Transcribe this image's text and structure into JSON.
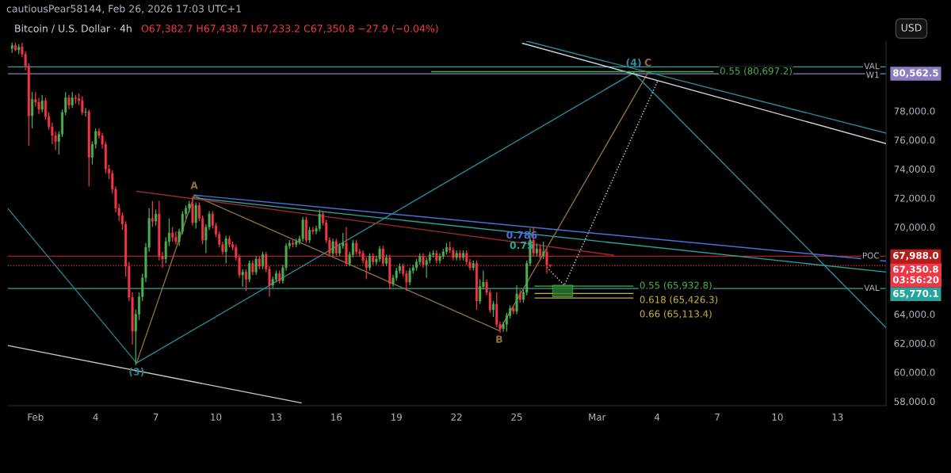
{
  "chart_data": {
    "type": "candlestick",
    "title": "Bitcoin / U.S. Dollar · 4h",
    "subtitle": "O67,382.7 H67,438.7 L67,233.2 C67,350.8 −27.9 (−0.04%)",
    "ylabel": "USD",
    "colors": [
      "#4caf50",
      "#f23645",
      "#4caf50",
      "#f23645",
      "#f23645",
      "#f23645",
      "#4caf50",
      "#f23645",
      "#f23645",
      "#4caf50",
      "#f23645",
      "#f23645",
      "#f23645",
      "#f23645",
      "#4caf50",
      "#4caf50",
      "#4caf50",
      "#f23645",
      "#4caf50",
      "#f23645",
      "#f23645",
      "#f23645",
      "#4caf50",
      "#f23645",
      "#4caf50",
      "#4caf50",
      "#f23645",
      "#f23645",
      "#f23645",
      "#f23645",
      "#f23645",
      "#f23645",
      "#f23645",
      "#f23645",
      "#f23645",
      "#f23645",
      "#f23645",
      "#4caf50",
      "#4caf50",
      "#4caf50",
      "#4caf50",
      "#4caf50",
      "#f23645",
      "#4caf50",
      "#f23645",
      "#f23645",
      "#4caf50",
      "#4caf50",
      "#f23645",
      "#f23645",
      "#4caf50",
      "#4caf50",
      "#4caf50",
      "#4caf50",
      "#f23645",
      "#4caf50",
      "#f23645",
      "#f23645",
      "#4caf50",
      "#4caf50",
      "#f23645",
      "#f23645",
      "#f23645",
      "#f23645",
      "#4caf50",
      "#f23645",
      "#f23645",
      "#f23645",
      "#f23645",
      "#4caf50",
      "#f23645",
      "#4caf50",
      "#f23645",
      "#4caf50",
      "#f23645",
      "#4caf50",
      "#f23645",
      "#f23645",
      "#4caf50",
      "#4caf50",
      "#f23645",
      "#4caf50",
      "#4caf50",
      "#4caf50",
      "#f23645",
      "#4caf50",
      "#4caf50",
      "#4caf50",
      "#f23645",
      "#4caf50",
      "#f23645",
      "#4caf50",
      "#4caf50",
      "#f23645",
      "#f23645",
      "#f23645",
      "#4caf50",
      "#f23645",
      "#4caf50",
      "#4caf50",
      "#f23645",
      "#4caf50",
      "#4caf50",
      "#f23645",
      "#f23645",
      "#f23645",
      "#f23645",
      "#4caf50",
      "#f23645",
      "#4caf50",
      "#4caf50",
      "#f23645",
      "#4caf50",
      "#f23645",
      "#4caf50",
      "#4caf50",
      "#4caf50",
      "#f23645",
      "#f23645",
      "#4caf50",
      "#4caf50",
      "#4caf50",
      "#4caf50",
      "#f23645",
      "#4caf50",
      "#4caf50",
      "#4caf50",
      "#f23645",
      "#4caf50",
      "#4caf50",
      "#4caf50",
      "#f23645",
      "#f23645",
      "#4caf50",
      "#f23645",
      "#4caf50",
      "#f23645",
      "#f23645",
      "#4caf50",
      "#f23645",
      "#4caf50",
      "#4caf50",
      "#f23645",
      "#f23645",
      "#4caf50",
      "#f23645",
      "#f23645",
      "#4caf50",
      "#4caf50",
      "#4caf50",
      "#f23645",
      "#4caf50",
      "#f23645",
      "#4caf50",
      "#4caf50",
      "#4caf50",
      "#f23645",
      "#4caf50",
      "#f23645",
      "#4caf50",
      "#f23645",
      "#f23645"
    ],
    "x": [
      "2026-01-30T20:00",
      "2026-01-31T00:00",
      "2026-01-31T04:00",
      "2026-01-31T08:00",
      "2026-01-31T12:00",
      "2026-01-31T16:00",
      "2026-01-31T20:00",
      "2026-02-01T00:00",
      "2026-02-01T04:00",
      "2026-02-01T08:00",
      "2026-02-01T12:00",
      "2026-02-01T16:00",
      "2026-02-01T20:00",
      "2026-02-02T00:00",
      "2026-02-02T04:00",
      "2026-02-02T08:00",
      "2026-02-02T12:00",
      "2026-02-02T16:00",
      "2026-02-02T20:00",
      "2026-02-03T00:00",
      "2026-02-03T04:00",
      "2026-02-03T08:00",
      "2026-02-03T12:00",
      "2026-02-03T16:00",
      "2026-02-03T20:00",
      "2026-02-04T00:00",
      "2026-02-04T04:00",
      "2026-02-04T08:00",
      "2026-02-04T12:00",
      "2026-02-04T16:00",
      "2026-02-04T20:00",
      "2026-02-05T00:00",
      "2026-02-05T04:00",
      "2026-02-05T08:00",
      "2026-02-05T12:00",
      "2026-02-05T16:00",
      "2026-02-05T20:00",
      "2026-02-06T00:00",
      "2026-02-06T04:00",
      "2026-02-06T08:00",
      "2026-02-06T12:00",
      "2026-02-06T16:00",
      "2026-02-06T20:00",
      "2026-02-07T00:00",
      "2026-02-07T04:00",
      "2026-02-07T08:00",
      "2026-02-07T12:00",
      "2026-02-07T16:00",
      "2026-02-07T20:00",
      "2026-02-08T00:00",
      "2026-02-08T04:00",
      "2026-02-08T08:00",
      "2026-02-08T12:00",
      "2026-02-08T16:00",
      "2026-02-08T20:00",
      "2026-02-09T00:00",
      "2026-02-09T04:00",
      "2026-02-09T08:00",
      "2026-02-09T12:00",
      "2026-02-09T16:00",
      "2026-02-09T20:00",
      "2026-02-10T00:00",
      "2026-02-10T04:00",
      "2026-02-10T08:00",
      "2026-02-10T12:00",
      "2026-02-10T16:00",
      "2026-02-10T20:00",
      "2026-02-11T00:00",
      "2026-02-11T04:00",
      "2026-02-11T08:00",
      "2026-02-11T12:00",
      "2026-02-11T16:00",
      "2026-02-11T20:00",
      "2026-02-12T00:00",
      "2026-02-12T04:00",
      "2026-02-12T08:00",
      "2026-02-12T12:00",
      "2026-02-12T16:00",
      "2026-02-12T20:00",
      "2026-02-13T00:00",
      "2026-02-13T04:00",
      "2026-02-13T08:00",
      "2026-02-13T12:00",
      "2026-02-13T16:00",
      "2026-02-13T20:00",
      "2026-02-14T00:00",
      "2026-02-14T04:00",
      "2026-02-14T08:00",
      "2026-02-14T12:00",
      "2026-02-14T16:00",
      "2026-02-14T20:00",
      "2026-02-15T00:00",
      "2026-02-15T04:00",
      "2026-02-15T08:00",
      "2026-02-15T12:00",
      "2026-02-15T16:00",
      "2026-02-15T20:00",
      "2026-02-16T00:00",
      "2026-02-16T04:00",
      "2026-02-16T08:00",
      "2026-02-16T12:00",
      "2026-02-16T16:00",
      "2026-02-16T20:00",
      "2026-02-17T00:00",
      "2026-02-17T04:00",
      "2026-02-17T08:00",
      "2026-02-17T12:00",
      "2026-02-17T16:00",
      "2026-02-17T20:00",
      "2026-02-18T00:00",
      "2026-02-18T04:00",
      "2026-02-18T08:00",
      "2026-02-18T12:00",
      "2026-02-18T16:00",
      "2026-02-18T20:00",
      "2026-02-19T00:00",
      "2026-02-19T04:00",
      "2026-02-19T08:00",
      "2026-02-19T12:00",
      "2026-02-19T16:00",
      "2026-02-19T20:00",
      "2026-02-20T00:00",
      "2026-02-20T04:00",
      "2026-02-20T08:00",
      "2026-02-20T12:00",
      "2026-02-20T16:00",
      "2026-02-20T20:00",
      "2026-02-21T00:00",
      "2026-02-21T04:00",
      "2026-02-21T08:00",
      "2026-02-21T12:00",
      "2026-02-21T16:00",
      "2026-02-21T20:00",
      "2026-02-22T00:00",
      "2026-02-22T04:00",
      "2026-02-22T08:00",
      "2026-02-22T12:00",
      "2026-02-22T16:00",
      "2026-02-22T20:00",
      "2026-02-23T00:00",
      "2026-02-23T04:00",
      "2026-02-23T08:00",
      "2026-02-23T12:00",
      "2026-02-23T16:00",
      "2026-02-23T20:00",
      "2026-02-24T00:00",
      "2026-02-24T04:00",
      "2026-02-24T08:00",
      "2026-02-24T12:00",
      "2026-02-24T16:00",
      "2026-02-24T20:00",
      "2026-02-25T00:00",
      "2026-02-25T04:00",
      "2026-02-25T08:00",
      "2026-02-25T12:00",
      "2026-02-25T16:00",
      "2026-02-25T20:00",
      "2026-02-26T00:00",
      "2026-02-26T04:00",
      "2026-02-26T08:00",
      "2026-02-26T12:00",
      "2026-02-26T16:00"
    ],
    "ohlc": [
      [
        82300,
        82700,
        82000,
        82500
      ],
      [
        82500,
        82700,
        82100,
        82200
      ],
      [
        82200,
        82600,
        81900,
        82400
      ],
      [
        82400,
        82700,
        81700,
        81900
      ],
      [
        81900,
        82100,
        80800,
        81100
      ],
      [
        81100,
        81300,
        75600,
        77660
      ],
      [
        77660,
        79300,
        76800,
        78800
      ],
      [
        78800,
        79300,
        78300,
        78600
      ],
      [
        78600,
        78900,
        77800,
        78100
      ],
      [
        78100,
        79100,
        77900,
        78700
      ],
      [
        78700,
        78900,
        77400,
        77600
      ],
      [
        77600,
        77900,
        76700,
        76900
      ],
      [
        76900,
        77200,
        75700,
        76300
      ],
      [
        76300,
        76600,
        75300,
        75900
      ],
      [
        75900,
        76600,
        75000,
        76400
      ],
      [
        76400,
        78100,
        76200,
        77900
      ],
      [
        77900,
        79300,
        77700,
        78900
      ],
      [
        78900,
        79100,
        78100,
        78400
      ],
      [
        78400,
        79300,
        78200,
        78900
      ],
      [
        78900,
        79100,
        78500,
        78850
      ],
      [
        78850,
        79200,
        78400,
        78700
      ],
      [
        78700,
        79000,
        77700,
        77900
      ],
      [
        77900,
        78200,
        77600,
        77950
      ],
      [
        77950,
        78100,
        72800,
        74800
      ],
      [
        74800,
        75900,
        74300,
        75700
      ],
      [
        75700,
        76800,
        75400,
        76600
      ],
      [
        76600,
        76800,
        76100,
        76300
      ],
      [
        76300,
        76500,
        75400,
        75700
      ],
      [
        75700,
        75900,
        73700,
        74000
      ],
      [
        74000,
        74300,
        73300,
        73700
      ],
      [
        73700,
        73900,
        72300,
        72600
      ],
      [
        72600,
        72800,
        71000,
        71300
      ],
      [
        71300,
        71600,
        70400,
        70800
      ],
      [
        70800,
        71000,
        69800,
        70200
      ],
      [
        70200,
        70400,
        66600,
        67300
      ],
      [
        67300,
        67600,
        64900,
        65160
      ],
      [
        65160,
        65500,
        61900,
        62820
      ],
      [
        62820,
        64300,
        60500,
        64000
      ],
      [
        64000,
        65500,
        63600,
        65200
      ],
      [
        65200,
        66800,
        64900,
        66500
      ],
      [
        66500,
        68900,
        66200,
        68600
      ],
      [
        68600,
        71300,
        68300,
        70600
      ],
      [
        70600,
        71800,
        70000,
        70400
      ],
      [
        70400,
        71200,
        70100,
        70900
      ],
      [
        70900,
        71800,
        67700,
        68000
      ],
      [
        68000,
        68300,
        67200,
        67800
      ],
      [
        67800,
        69300,
        67500,
        69000
      ],
      [
        69000,
        70600,
        68700,
        69600
      ],
      [
        69600,
        70000,
        69000,
        69300
      ],
      [
        69300,
        69700,
        68800,
        69000
      ],
      [
        69000,
        69900,
        68700,
        69700
      ],
      [
        69700,
        71100,
        69500,
        70900
      ],
      [
        70900,
        71500,
        70600,
        71300
      ],
      [
        71300,
        71800,
        71000,
        71600
      ],
      [
        71600,
        72100,
        70100,
        70300
      ],
      [
        70300,
        71700,
        69900,
        71500
      ],
      [
        71500,
        71700,
        70400,
        70600
      ],
      [
        70600,
        70800,
        68800,
        69100
      ],
      [
        69100,
        70200,
        68200,
        70000
      ],
      [
        70000,
        71100,
        69800,
        70900
      ],
      [
        70900,
        71100,
        69900,
        70100
      ],
      [
        70100,
        70300,
        69300,
        69500
      ],
      [
        69500,
        69700,
        68600,
        68800
      ],
      [
        68800,
        69000,
        68100,
        68300
      ],
      [
        68300,
        69400,
        67500,
        69200
      ],
      [
        69200,
        69400,
        68600,
        68800
      ],
      [
        68800,
        69000,
        68400,
        68600
      ],
      [
        68600,
        68800,
        67700,
        67900
      ],
      [
        67900,
        68100,
        66500,
        66700
      ],
      [
        66700,
        67100,
        65900,
        66900
      ],
      [
        66900,
        67100,
        65600,
        66400
      ],
      [
        66400,
        67700,
        66200,
        67500
      ],
      [
        67500,
        67700,
        66700,
        66900
      ],
      [
        66900,
        68000,
        66700,
        67800
      ],
      [
        67800,
        68000,
        67100,
        67300
      ],
      [
        67300,
        68300,
        67100,
        68100
      ],
      [
        68100,
        68300,
        66900,
        67100
      ],
      [
        67100,
        67300,
        65200,
        66000
      ],
      [
        66000,
        66600,
        65800,
        66400
      ],
      [
        66400,
        67000,
        66200,
        66800
      ],
      [
        66800,
        67000,
        66100,
        66300
      ],
      [
        66300,
        67400,
        66100,
        67200
      ],
      [
        67200,
        68900,
        67000,
        68700
      ],
      [
        68700,
        69100,
        68500,
        68900
      ],
      [
        68900,
        69100,
        68600,
        68800
      ],
      [
        68800,
        69200,
        68600,
        69000
      ],
      [
        69000,
        69400,
        68800,
        69200
      ],
      [
        69200,
        70700,
        69000,
        70500
      ],
      [
        70500,
        70700,
        68900,
        69100
      ],
      [
        69100,
        70000,
        68900,
        69800
      ],
      [
        69800,
        70000,
        69500,
        69700
      ],
      [
        69700,
        70100,
        69500,
        69900
      ],
      [
        69900,
        71200,
        69700,
        70900
      ],
      [
        70900,
        71100,
        70100,
        70300
      ],
      [
        70300,
        70500,
        68900,
        69100
      ],
      [
        69100,
        69300,
        68000,
        68200
      ],
      [
        68200,
        69200,
        68000,
        69000
      ],
      [
        69000,
        69200,
        68000,
        68200
      ],
      [
        68200,
        68900,
        68000,
        68700
      ],
      [
        68700,
        69600,
        68500,
        68900
      ],
      [
        68900,
        70000,
        67300,
        67500
      ],
      [
        67500,
        68300,
        67300,
        68100
      ],
      [
        68100,
        69100,
        67900,
        68900
      ],
      [
        68900,
        69100,
        68100,
        68300
      ],
      [
        68300,
        68500,
        68000,
        68200
      ],
      [
        68200,
        68400,
        67500,
        67700
      ],
      [
        67700,
        67900,
        66400,
        67200
      ],
      [
        67200,
        68200,
        67000,
        68000
      ],
      [
        68000,
        68200,
        67400,
        67600
      ],
      [
        67600,
        68000,
        67400,
        67800
      ],
      [
        67800,
        68700,
        67600,
        68500
      ],
      [
        68500,
        68700,
        67300,
        67500
      ],
      [
        67500,
        68100,
        67300,
        67900
      ],
      [
        67900,
        68100,
        65700,
        66100
      ],
      [
        66100,
        66700,
        65900,
        66500
      ],
      [
        66500,
        67200,
        66300,
        67000
      ],
      [
        67000,
        67500,
        66800,
        67300
      ],
      [
        67300,
        67500,
        66600,
        66800
      ],
      [
        66800,
        67000,
        65600,
        66200
      ],
      [
        66200,
        67200,
        66000,
        67000
      ],
      [
        67000,
        67400,
        66800,
        67200
      ],
      [
        67200,
        67800,
        67000,
        67600
      ],
      [
        67600,
        68200,
        67400,
        68000
      ],
      [
        68000,
        68200,
        67200,
        67400
      ],
      [
        67400,
        67900,
        66500,
        67700
      ],
      [
        67700,
        68300,
        67500,
        68100
      ],
      [
        68100,
        68400,
        67900,
        68200
      ],
      [
        68200,
        68400,
        67500,
        67700
      ],
      [
        67700,
        68200,
        67500,
        68000
      ],
      [
        68000,
        68500,
        67800,
        68300
      ],
      [
        68300,
        68900,
        68100,
        68600
      ],
      [
        68600,
        69000,
        68200,
        68400
      ],
      [
        68400,
        68600,
        67700,
        67900
      ],
      [
        67900,
        68400,
        67700,
        68200
      ],
      [
        68200,
        68400,
        67700,
        67900
      ],
      [
        67900,
        68400,
        67700,
        68200
      ],
      [
        68200,
        68400,
        67400,
        67600
      ],
      [
        67600,
        67800,
        67000,
        67200
      ],
      [
        67200,
        67700,
        67000,
        67500
      ],
      [
        67500,
        67700,
        64300,
        64900
      ],
      [
        64900,
        66400,
        64700,
        65900
      ],
      [
        65900,
        67000,
        65700,
        66200
      ],
      [
        66200,
        66400,
        65300,
        65500
      ],
      [
        65500,
        65700,
        64100,
        64300
      ],
      [
        64300,
        64900,
        63800,
        64700
      ],
      [
        64700,
        65500,
        63100,
        63300
      ],
      [
        63300,
        63500,
        62700,
        63000
      ],
      [
        63000,
        63500,
        62800,
        63300
      ],
      [
        63300,
        64100,
        62800,
        63900
      ],
      [
        63900,
        64600,
        63700,
        64400
      ],
      [
        64400,
        64600,
        64000,
        64200
      ],
      [
        64200,
        66000,
        64000,
        65400
      ],
      [
        65400,
        65700,
        64800,
        65000
      ],
      [
        65000,
        65700,
        64800,
        65500
      ],
      [
        65500,
        67700,
        65300,
        67500
      ],
      [
        67500,
        69900,
        67300,
        69100
      ],
      [
        69100,
        70000,
        68000,
        68200
      ],
      [
        68200,
        68900,
        68000,
        68500
      ],
      [
        68500,
        68800,
        67800,
        68000
      ],
      [
        68000,
        69000,
        67800,
        68300
      ],
      [
        68300,
        68500,
        66800,
        67383
      ],
      [
        67382.7,
        67438.7,
        67233.2,
        67350.8
      ]
    ],
    "series": [
      {
        "type": "line",
        "x": [
          "2026-01-30T15:00",
          "2026-02-14T06:00"
        ],
        "values": [
          61840,
          57890
        ],
        "color": "#c8cad0"
      },
      {
        "type": "line",
        "x": [
          "2026-01-30T15:00",
          "2026-02-06T01:00"
        ],
        "values": [
          71280,
          60640
        ],
        "color": "#2a7f85"
      },
      {
        "type": "line",
        "x": [
          "2026-02-06T01:00",
          "2026-03-02T20:00"
        ],
        "values": [
          60640,
          80620
        ],
        "color": "#2a8c9c"
      },
      {
        "type": "line",
        "x": [
          "2026-03-02T20:00",
          "2026-03-15T10:00"
        ],
        "values": [
          80620,
          63080
        ],
        "color": "#2a8c9c"
      },
      {
        "type": "line",
        "x": [
          "2026-02-06T01:00",
          "2026-02-08T22:00"
        ],
        "values": [
          60640,
          72160
        ],
        "color": "#8d6e3f"
      },
      {
        "type": "line",
        "x": [
          "2026-02-08T22:00",
          "2026-02-24T03:00"
        ],
        "values": [
          72160,
          62870
        ],
        "color": "#8d6e3f"
      },
      {
        "type": "line",
        "x": [
          "2026-02-24T03:00",
          "2026-03-03T13:00"
        ],
        "values": [
          62870,
          80620
        ],
        "color": "#8d6e3f"
      },
      {
        "type": "line",
        "x": [
          "2026-02-26T12:00",
          "2026-02-27T09:00",
          "2026-03-04T01:00"
        ],
        "values": [
          67230,
          65990,
          80100
        ],
        "color": "#d1d4dc",
        "line_style": "dotted"
      },
      {
        "type": "line",
        "x": [
          "2026-02-08T22:00",
          "2026-03-15T10:00"
        ],
        "values": [
          72200,
          67660
        ],
        "color": "#4a6fd8"
      },
      {
        "type": "line",
        "x": [
          "2026-02-08T22:00",
          "2026-03-15T10:00"
        ],
        "values": [
          72010,
          66900
        ],
        "color": "#26a69a"
      },
      {
        "type": "line",
        "x": [
          "2026-02-06T01:00",
          "2026-03-01T20:00"
        ],
        "values": [
          72470,
          68060
        ],
        "color": "#a32a2a"
      },
      {
        "type": "line",
        "x": [
          "2026-02-25T07:00",
          "2026-03-15T10:00"
        ],
        "values": [
          82650,
          75750
        ],
        "color": "#d1d4dc"
      },
      {
        "type": "line",
        "x": [
          "2026-02-25T12:00",
          "2026-03-15T10:00"
        ],
        "values": [
          82800,
          76470
        ],
        "color": "#2a8c9c"
      },
      {
        "type": "line",
        "x": [
          "2026-02-20T18:00",
          "2026-03-06T19:00"
        ],
        "values": [
          80697.2,
          80697.2
        ],
        "color": "#4caf50",
        "name": "0.55 (80,697.2)"
      },
      {
        "type": "line",
        "x": [
          "2026-02-25T22:00",
          "2026-03-02T19:00"
        ],
        "values": [
          65932.8,
          65932.8
        ],
        "color": "#4caf50",
        "name": "0.55 (65,932.8)"
      },
      {
        "type": "line",
        "x": [
          "2026-02-25T22:00",
          "2026-03-02T19:00"
        ],
        "values": [
          65426.3,
          65426.3
        ],
        "color": "#c9b037",
        "name": "0.618 (65,426.3)"
      },
      {
        "type": "line",
        "x": [
          "2026-02-25T22:00",
          "2026-03-02T19:00"
        ],
        "values": [
          65113.4,
          65113.4
        ],
        "color": "#c9b037",
        "name": "0.66 (65,113.4)"
      },
      {
        "type": "bar",
        "x": [
          "2026-02-27T07:00"
        ],
        "base": [
          65200
        ],
        "values": [
          790
        ],
        "color": "#2e7d32"
      }
    ],
    "ref_lines": [
      {
        "axis": "y",
        "value": 81040,
        "label": "VAL",
        "color": "#26a69a"
      },
      {
        "axis": "y",
        "value": 80562.5,
        "label": "W1",
        "color": "#8e7cc3"
      },
      {
        "axis": "y",
        "value": 67988.0,
        "label": "POC",
        "color": "#b71c1c"
      },
      {
        "axis": "y",
        "value": 65770.1,
        "label": "VAL",
        "color": "#26a69a"
      },
      {
        "axis": "y",
        "value": 67350.8,
        "color": "#f23645",
        "line_style": "dotted"
      }
    ],
    "annotations": [
      "cautiousPear58144, Feb 26, 2026 17:03 UTC+1",
      {
        "text": "A",
        "x": "2026-02-08T22:00",
        "y": 72160
      },
      {
        "text": "B",
        "x": "2026-02-24T03:00",
        "y": 62870
      },
      {
        "text": "C",
        "x": "2026-03-03T13:00",
        "y": 80620
      },
      {
        "text": "(3)",
        "x": "2026-02-06T01:00",
        "y": 60640
      },
      {
        "text": "(4)",
        "x": "2026-03-02T20:00",
        "y": 80620
      },
      {
        "text": "0.786",
        "x": "2026-02-25T06:00",
        "y": 70050
      },
      {
        "text": "0.75",
        "x": "2026-02-25T06:00",
        "y": 69590
      },
      {
        "text": "80,562.5",
        "x": "2026-03-15T10:00",
        "y": 80562.5
      },
      {
        "text": "67,988.0",
        "x": "2026-03-15T10:00",
        "y": 67988.0
      },
      {
        "text": "67,350.8\n03:56:20",
        "x": "2026-03-15T10:00",
        "y": 67350.8
      },
      {
        "text": "65,770.1",
        "x": "2026-03-15T10:00",
        "y": 65770.1
      }
    ],
    "xlim": [
      "2026-01-30T15:00",
      "2026-03-15T10:00"
    ],
    "xticks": [
      {
        "value": "2026-02-01",
        "label": "Feb"
      },
      {
        "value": "2026-02-04",
        "label": "4"
      },
      {
        "value": "2026-02-07",
        "label": "7"
      },
      {
        "value": "2026-02-10",
        "label": "10"
      },
      {
        "value": "2026-02-13",
        "label": "13"
      },
      {
        "value": "2026-02-16",
        "label": "16"
      },
      {
        "value": "2026-02-19",
        "label": "19"
      },
      {
        "value": "2026-02-22",
        "label": "22"
      },
      {
        "value": "2026-02-25",
        "label": "25"
      },
      {
        "value": "2026-03-01",
        "label": "Mar"
      },
      {
        "value": "2026-03-04",
        "label": "4"
      },
      {
        "value": "2026-03-07",
        "label": "7"
      },
      {
        "value": "2026-03-10",
        "label": "10"
      },
      {
        "value": "2026-03-13",
        "label": "13"
      }
    ],
    "ylim": [
      57700,
      82800
    ],
    "yticks": [
      {
        "value": 58000,
        "label": "58,000.0"
      },
      {
        "value": 60000,
        "label": "60,000.0"
      },
      {
        "value": 62000,
        "label": "62,000.0"
      },
      {
        "value": 64000,
        "label": "64,000.0"
      },
      {
        "value": 70000,
        "label": "70,000.0"
      },
      {
        "value": 72000,
        "label": "72,000.0"
      },
      {
        "value": 74000,
        "label": "74,000.0"
      },
      {
        "value": 76000,
        "label": "76,000.0"
      },
      {
        "value": 78000,
        "label": "78,000.0"
      }
    ],
    "grid": false,
    "legend": false
  }
}
